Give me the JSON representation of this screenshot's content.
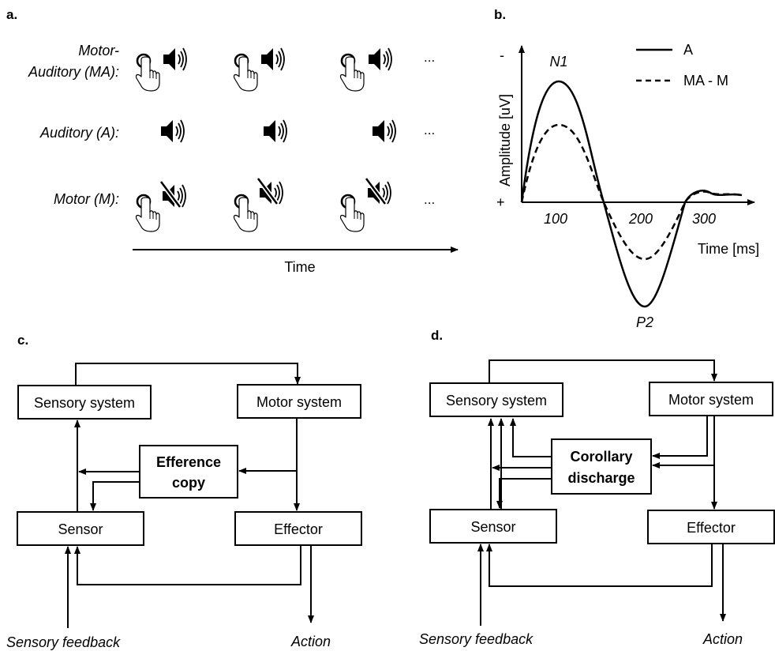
{
  "panels": {
    "a": {
      "letter": "a.",
      "rows": [
        {
          "label_lines": [
            "Motor-",
            "Auditory (MA):"
          ],
          "tap": true,
          "sound": "on"
        },
        {
          "label_lines": [
            "Auditory (A):"
          ],
          "tap": false,
          "sound": "on"
        },
        {
          "label_lines": [
            "Motor (M):"
          ],
          "tap": true,
          "sound": "muted"
        }
      ],
      "ellipsis": "...",
      "time_label": "Time"
    },
    "b": {
      "letter": "b.",
      "ylabel": "Amplitude [uV]",
      "y_minus": "-",
      "y_plus": "+",
      "xlabel": "Time [ms]",
      "xticks": [
        "100",
        "200",
        "300"
      ],
      "peak_n1": "N1",
      "peak_p2": "P2"
    },
    "c": {
      "letter": "c.",
      "sensory_system": "Sensory system",
      "motor_system": "Motor system",
      "center_line1": "Efference",
      "center_line2": "copy",
      "sensor": "Sensor",
      "effector": "Effector",
      "sensory_feedback": "Sensory feedback",
      "action": "Action"
    },
    "d": {
      "letter": "d.",
      "sensory_system": "Sensory system",
      "motor_system": "Motor system",
      "center_line1": "Corollary",
      "center_line2": "discharge",
      "sensor": "Sensor",
      "effector": "Effector",
      "sensory_feedback": "Sensory feedback",
      "action": "Action"
    }
  },
  "chart_data": {
    "type": "line",
    "xlabel": "Time [ms]",
    "ylabel": "Amplitude [uV]",
    "xticks": [
      100,
      200,
      300
    ],
    "series": [
      {
        "name": "A",
        "style": "solid",
        "x": [
          0,
          100,
          160,
          220,
          270,
          290,
          310
        ],
        "y": [
          0,
          -1.0,
          0,
          1.0,
          0.1,
          -0.05,
          0
        ]
      },
      {
        "name": "MA - M",
        "style": "dashed",
        "x": [
          0,
          100,
          160,
          220,
          270,
          290,
          310
        ],
        "y": [
          0,
          -0.6,
          0,
          0.55,
          0.1,
          -0.05,
          0
        ]
      }
    ],
    "annotations": [
      "N1",
      "P2"
    ],
    "legend": "top-right"
  },
  "colors": {
    "ink": "#000000",
    "background": "#ffffff"
  }
}
